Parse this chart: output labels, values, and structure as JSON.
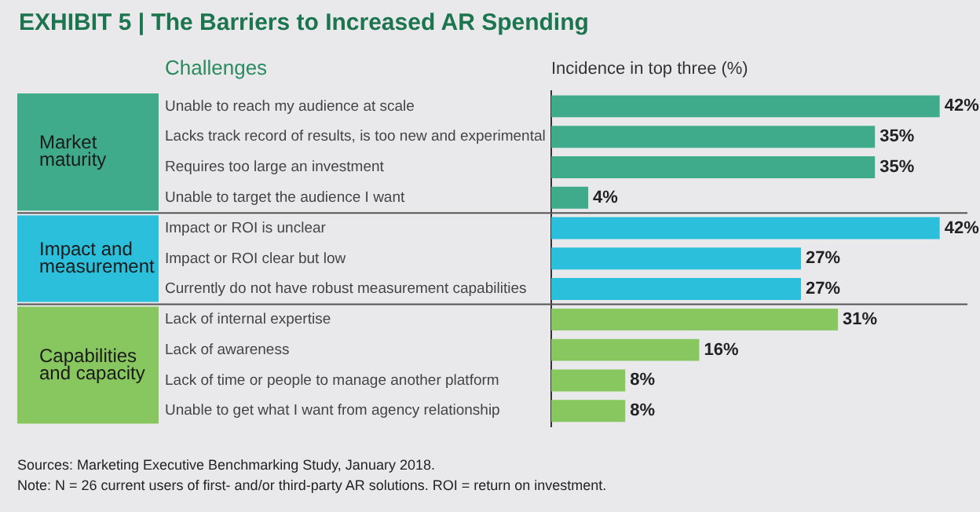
{
  "chart_data": {
    "type": "bar",
    "orientation": "horizontal",
    "title": "EXHIBIT 5 | The Barriers to Increased AR Spending",
    "ylabel": "Challenges",
    "xlabel": "Incidence in top three (%)",
    "categories": [
      "Unable to reach my audience at scale",
      "Lacks track record of results, is too new and experimental",
      "Requires too large an investment",
      "Unable to target the audience I want",
      "Impact or ROI is unclear",
      "Impact or ROI clear but low",
      "Currently do not have robust measurement capabilities",
      "Lack of internal expertise",
      "Lack of awareness",
      "Lack of time or people to manage another platform",
      "Unable to get what I want from agency relationship"
    ],
    "values": [
      42,
      35,
      35,
      4,
      42,
      27,
      27,
      31,
      16,
      8,
      8
    ],
    "value_labels": [
      "42%",
      "35%",
      "35%",
      "4%",
      "42%",
      "27%",
      "27%",
      "31%",
      "16%",
      "8%",
      "8%"
    ],
    "colors": [
      "#3fab8b",
      "#3fab8b",
      "#3fab8b",
      "#3fab8b",
      "#2bbfdb",
      "#2bbfdb",
      "#2bbfdb",
      "#88c75f",
      "#88c75f",
      "#88c75f",
      "#88c75f"
    ],
    "xlim": [
      0,
      45
    ],
    "tick_labels": "y",
    "legend": false,
    "grid": false,
    "annotations": [
      "Market maturity",
      "Impact and measurement",
      "Capabilities and capacity",
      "Sources: Marketing Executive Benchmarking Study, January 2018.",
      "Note: N = 26 current users of first- and/or third-party AR solutions. ROI = return on investment."
    ]
  }
}
